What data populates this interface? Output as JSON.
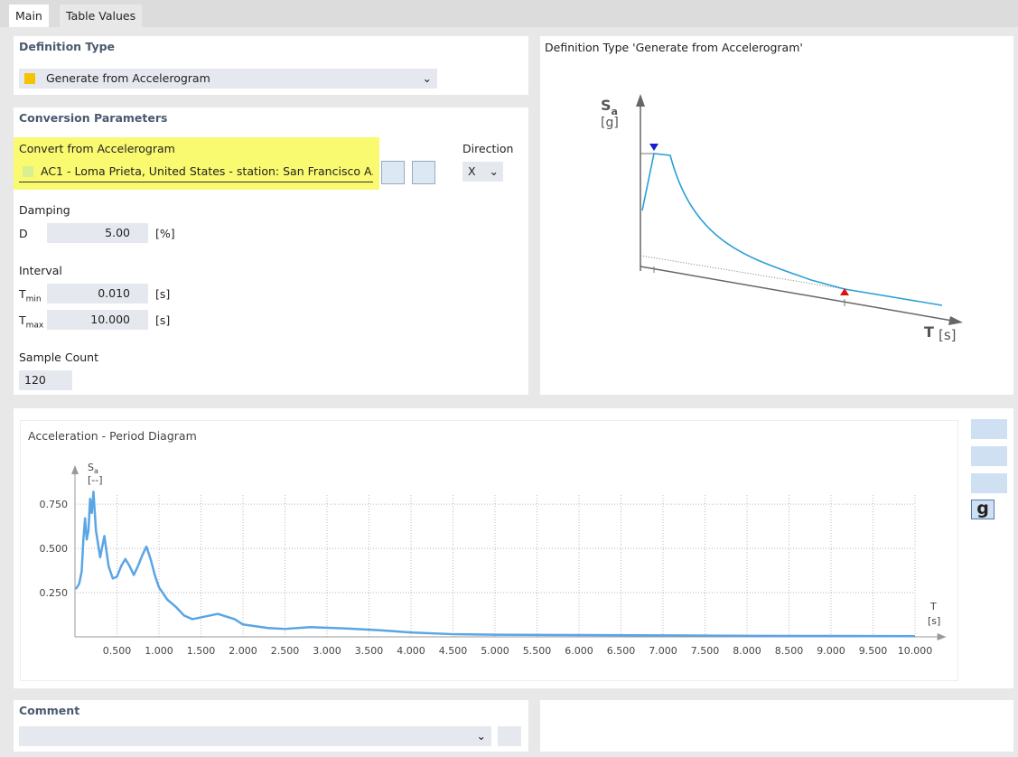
{
  "tabs": [
    "Main",
    "Table Values"
  ],
  "definition_type": {
    "title": "Definition Type",
    "value": "Generate from Accelerogram"
  },
  "conversion_parameters": {
    "title": "Conversion Parameters",
    "accelerogram_label": "Convert from Accelerogram",
    "accelerogram": "AC1 - Loma Prieta, United States - station: San Francisco A...",
    "direction_label": "Direction",
    "direction": "X",
    "damping_label": "Damping",
    "damping_symbol": "D",
    "damping": "5.00",
    "damping_unit": "[%]",
    "interval_label": "Interval",
    "tmin_symbol": {
      "main": "T",
      "sub": "min"
    },
    "tmin": "0.010",
    "tmin_unit": "[s]",
    "tmax_symbol": {
      "main": "T",
      "sub": "max"
    },
    "tmax": "10.000",
    "tmax_unit": "[s]",
    "sample_count_label": "Sample Count",
    "sample_count": "120"
  },
  "preview": {
    "title": "Definition Type 'Generate from Accelerogram'",
    "y_label": {
      "main": "S",
      "sub": "a"
    },
    "y_unit": "[g]",
    "x_label": "T",
    "x_unit": "[s]"
  },
  "chart_data": {
    "type": "line",
    "title": "Acceleration - Period Diagram",
    "y_label": {
      "main": "S",
      "sub": "a"
    },
    "y_unit": "[--]",
    "x_label": "T",
    "x_unit": "[s]",
    "x": [
      0.01,
      0.05,
      0.08,
      0.1,
      0.12,
      0.14,
      0.16,
      0.18,
      0.2,
      0.22,
      0.25,
      0.3,
      0.35,
      0.4,
      0.45,
      0.5,
      0.55,
      0.6,
      0.65,
      0.7,
      0.75,
      0.8,
      0.85,
      0.9,
      0.95,
      1.0,
      1.1,
      1.2,
      1.3,
      1.4,
      1.5,
      1.7,
      1.9,
      2.0,
      2.3,
      2.5,
      2.8,
      3.2,
      3.6,
      4.0,
      4.5,
      5.0,
      6.0,
      7.0,
      8.0,
      9.0,
      10.0
    ],
    "values": [
      0.27,
      0.3,
      0.37,
      0.55,
      0.67,
      0.55,
      0.6,
      0.78,
      0.7,
      0.82,
      0.6,
      0.45,
      0.57,
      0.4,
      0.33,
      0.34,
      0.4,
      0.44,
      0.4,
      0.35,
      0.4,
      0.46,
      0.51,
      0.44,
      0.35,
      0.28,
      0.21,
      0.17,
      0.12,
      0.1,
      0.11,
      0.13,
      0.1,
      0.07,
      0.05,
      0.045,
      0.055,
      0.048,
      0.038,
      0.025,
      0.015,
      0.012,
      0.01,
      0.008,
      0.006,
      0.005,
      0.004
    ],
    "color": "#5aa5e6",
    "xlim": [
      0,
      10.2
    ],
    "ylim": [
      0,
      0.96
    ],
    "xticks": [
      {
        "value": 0.5,
        "label": "0.500"
      },
      {
        "value": 1,
        "label": "1.000"
      },
      {
        "value": 1.5,
        "label": "1.500"
      },
      {
        "value": 2,
        "label": "2.000"
      },
      {
        "value": 2.5,
        "label": "2.500"
      },
      {
        "value": 3,
        "label": "3.000"
      },
      {
        "value": 3.5,
        "label": "3.500"
      },
      {
        "value": 4,
        "label": "4.000"
      },
      {
        "value": 4.5,
        "label": "4.500"
      },
      {
        "value": 5,
        "label": "5.000"
      },
      {
        "value": 5.5,
        "label": "5.500"
      },
      {
        "value": 6,
        "label": "6.000"
      },
      {
        "value": 6.5,
        "label": "6.500"
      },
      {
        "value": 7,
        "label": "7.000"
      },
      {
        "value": 7.5,
        "label": "7.500"
      },
      {
        "value": 8,
        "label": "8.000"
      },
      {
        "value": 8.5,
        "label": "8.500"
      },
      {
        "value": 9,
        "label": "9.000"
      },
      {
        "value": 9.5,
        "label": "9.500"
      },
      {
        "value": 10,
        "label": "10.000"
      }
    ],
    "yticks": [
      {
        "value": 0.25,
        "label": "0.250"
      },
      {
        "value": 0.5,
        "label": "0.500"
      },
      {
        "value": 0.75,
        "label": "0.750"
      }
    ],
    "grid": true
  },
  "toolbar": {
    "units_button": "g"
  },
  "comment": {
    "title": "Comment"
  }
}
